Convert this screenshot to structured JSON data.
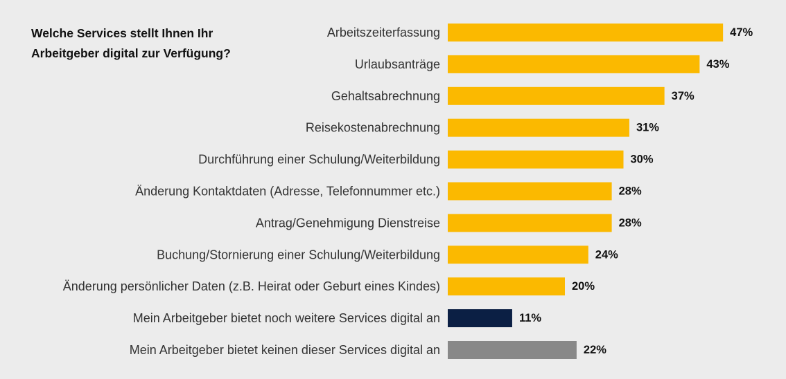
{
  "chart_data": {
    "type": "bar",
    "orientation": "horizontal",
    "title": "Welche Services stellt Ihnen Ihr Arbeitgeber digital zur Verfügung?",
    "categories": [
      "Arbeitszeiterfassung",
      "Urlaubsanträge",
      "Gehaltsabrechnung",
      "Reisekostenabrechnung",
      "Durchführung einer Schulung/Weiterbildung",
      "Änderung Kontaktdaten (Adresse, Telefonnummer etc.)",
      "Antrag/Genehmigung Dienstreise",
      "Buchung/Stornierung einer Schulung/Weiterbildung",
      "Änderung persönlicher Daten (z.B. Heirat oder Geburt eines Kindes)",
      "Mein Arbeitgeber bietet noch weitere Services digital an",
      "Mein Arbeitgeber bietet keinen dieser Services digital an"
    ],
    "values": [
      47,
      43,
      37,
      31,
      30,
      28,
      28,
      24,
      20,
      11,
      22
    ],
    "value_labels": [
      "47%",
      "43%",
      "37%",
      "31%",
      "30%",
      "28%",
      "28%",
      "24%",
      "20%",
      "11%",
      "22%"
    ],
    "unit": "%",
    "xlim": [
      0,
      50
    ],
    "colors": [
      "#fbb900",
      "#fbb900",
      "#fbb900",
      "#fbb900",
      "#fbb900",
      "#fbb900",
      "#fbb900",
      "#fbb900",
      "#fbb900",
      "#0b1f44",
      "#888888"
    ],
    "background": "#ececec",
    "grid": false,
    "legend": "none"
  }
}
